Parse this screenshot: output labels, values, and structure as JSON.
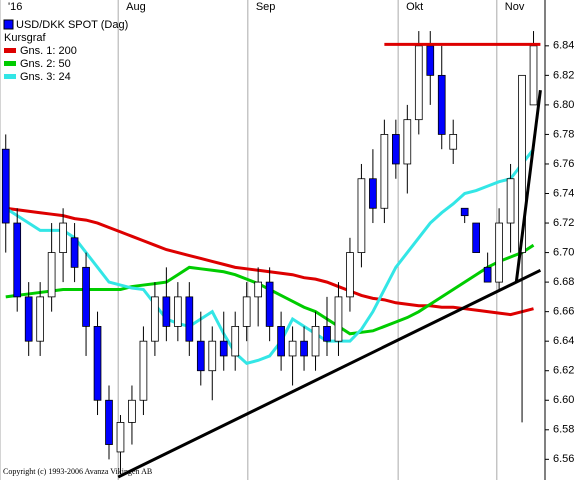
{
  "chart_data": {
    "type": "candlestick",
    "title": "USD/DKK SPOT (Dag)",
    "subtitle": "Kursgraf",
    "footnote": "Copyright (c) 1993-2006 Avanza Vikingen AB",
    "candle_color": "#0000ff",
    "up_color": "#ffffff",
    "categories": [
      null,
      null,
      null,
      null,
      null,
      null,
      null,
      null,
      null,
      null,
      null,
      null,
      null,
      null,
      null,
      null,
      null,
      null,
      null,
      null,
      null,
      null,
      null,
      null,
      null,
      null,
      null,
      null,
      null,
      null,
      null,
      null,
      null,
      null,
      null,
      null,
      null,
      null,
      null,
      null,
      null,
      null,
      null,
      null,
      null,
      null,
      null
    ],
    "open": [
      6.77,
      6.72,
      6.67,
      6.64,
      6.67,
      6.7,
      6.71,
      6.69,
      6.65,
      6.6,
      6.565,
      6.585,
      6.6,
      6.64,
      6.67,
      6.65,
      6.67,
      6.64,
      6.62,
      6.64,
      6.63,
      6.65,
      6.67,
      6.68,
      6.65,
      6.63,
      6.64,
      6.63,
      6.65,
      6.64,
      6.67,
      6.7,
      6.75,
      6.73,
      6.78,
      6.76,
      6.79,
      6.84,
      6.82,
      6.77,
      6.73,
      6.72,
      6.69,
      6.68,
      6.72,
      6.7,
      6.8
    ],
    "high": [
      6.78,
      6.73,
      6.68,
      6.68,
      6.72,
      6.73,
      6.72,
      6.7,
      6.66,
      6.61,
      6.59,
      6.61,
      6.65,
      6.68,
      6.69,
      6.68,
      6.68,
      6.66,
      6.65,
      6.66,
      6.66,
      6.68,
      6.69,
      6.69,
      6.66,
      6.65,
      6.65,
      6.66,
      6.67,
      6.68,
      6.71,
      6.76,
      6.77,
      6.79,
      6.79,
      6.8,
      6.85,
      6.85,
      6.84,
      6.79,
      6.73,
      6.72,
      6.7,
      6.73,
      6.76,
      6.82,
      6.85
    ],
    "low": [
      6.7,
      6.66,
      6.63,
      6.63,
      6.66,
      6.68,
      6.68,
      6.63,
      6.59,
      6.56,
      6.55,
      6.57,
      6.59,
      6.63,
      6.64,
      6.64,
      6.63,
      6.61,
      6.6,
      6.62,
      6.62,
      6.64,
      6.65,
      6.64,
      6.62,
      6.61,
      6.62,
      6.62,
      6.63,
      6.63,
      6.66,
      6.69,
      6.72,
      6.72,
      6.75,
      6.74,
      6.78,
      6.8,
      6.77,
      6.76,
      6.72,
      6.7,
      6.68,
      6.675,
      6.7,
      6.585,
      6.8
    ],
    "close": [
      6.72,
      6.67,
      6.64,
      6.67,
      6.7,
      6.72,
      6.69,
      6.65,
      6.6,
      6.57,
      6.585,
      6.6,
      6.64,
      6.67,
      6.65,
      6.67,
      6.64,
      6.62,
      6.64,
      6.63,
      6.65,
      6.67,
      6.68,
      6.65,
      6.63,
      6.64,
      6.63,
      6.65,
      6.64,
      6.67,
      6.7,
      6.75,
      6.73,
      6.78,
      6.76,
      6.79,
      6.84,
      6.82,
      6.78,
      6.78,
      6.725,
      6.7,
      6.68,
      6.72,
      6.75,
      6.82,
      6.84
    ],
    "series": [
      {
        "name": "Gns. 1: 200",
        "color": "#dd0000",
        "values": [
          6.73,
          6.729,
          6.728,
          6.727,
          6.726,
          6.725,
          6.723,
          6.722,
          6.72,
          6.717,
          6.714,
          6.711,
          6.708,
          6.705,
          6.702,
          6.7,
          6.698,
          6.696,
          6.694,
          6.692,
          6.69,
          6.689,
          6.688,
          6.687,
          6.686,
          6.685,
          6.683,
          6.682,
          6.68,
          6.677,
          6.674,
          6.671,
          6.669,
          6.668,
          6.666,
          6.665,
          6.664,
          6.664,
          6.663,
          6.663,
          6.662,
          6.661,
          6.66,
          6.659,
          6.658,
          6.66,
          6.662
        ]
      },
      {
        "name": "Gns. 2: 50",
        "color": "#00cc00",
        "values": [
          6.67,
          6.671,
          6.672,
          6.673,
          6.674,
          6.675,
          6.675,
          6.675,
          6.675,
          6.675,
          6.675,
          6.677,
          6.678,
          6.679,
          6.68,
          6.685,
          6.69,
          6.689,
          6.688,
          6.687,
          6.685,
          6.682,
          6.679,
          6.675,
          6.671,
          6.667,
          6.663,
          6.66,
          6.655,
          6.65,
          6.645,
          6.646,
          6.647,
          6.65,
          6.653,
          6.656,
          6.66,
          6.665,
          6.67,
          6.675,
          6.68,
          6.685,
          6.69,
          6.694,
          6.697,
          6.7,
          6.705
        ]
      },
      {
        "name": "Gns. 3: 24",
        "color": "#33e6e6",
        "values": [
          6.73,
          6.725,
          6.72,
          6.715,
          6.715,
          6.715,
          6.71,
          6.7,
          6.69,
          6.68,
          6.678,
          6.676,
          6.675,
          6.665,
          6.655,
          6.652,
          6.65,
          6.655,
          6.66,
          6.645,
          6.632,
          6.625,
          6.627,
          6.63,
          6.64,
          6.655,
          6.65,
          6.645,
          6.64,
          6.64,
          6.64,
          6.648,
          6.66,
          6.675,
          6.69,
          6.7,
          6.71,
          6.72,
          6.727,
          6.733,
          6.74,
          6.742,
          6.745,
          6.748,
          6.75,
          6.76,
          6.77
        ]
      }
    ],
    "trendlines": [
      {
        "color": "#dd0000",
        "x": [
          33.0,
          46.6
        ],
        "y": [
          6.841,
          6.841
        ]
      },
      {
        "color": "#000000",
        "x": [
          9.8,
          46.6
        ],
        "y": [
          6.548,
          6.688
        ]
      },
      {
        "color": "#000000",
        "x": [
          44.5,
          46.6
        ],
        "y": [
          6.68,
          6.81
        ]
      }
    ],
    "xlim": [
      -0.5,
      47
    ],
    "xticks": [
      {
        "value": -0.5,
        "label": "'16"
      },
      {
        "value": 9.8,
        "label": "Aug"
      },
      {
        "value": 21.1,
        "label": "Sep"
      },
      {
        "value": 34.2,
        "label": "Okt"
      },
      {
        "value": 42.8,
        "label": "Nov"
      }
    ],
    "ylim": [
      6.546,
      6.869
    ],
    "yticks": [
      6.56,
      6.58,
      {
        "value": 6.6,
        "label": "6.60"
      },
      6.62,
      6.64,
      6.66,
      6.68,
      {
        "value": 6.7,
        "label": "6.70"
      },
      6.72,
      6.74,
      6.76,
      6.78,
      {
        "value": 6.8,
        "label": "6.80"
      },
      6.82,
      6.84
    ],
    "grid": true
  }
}
